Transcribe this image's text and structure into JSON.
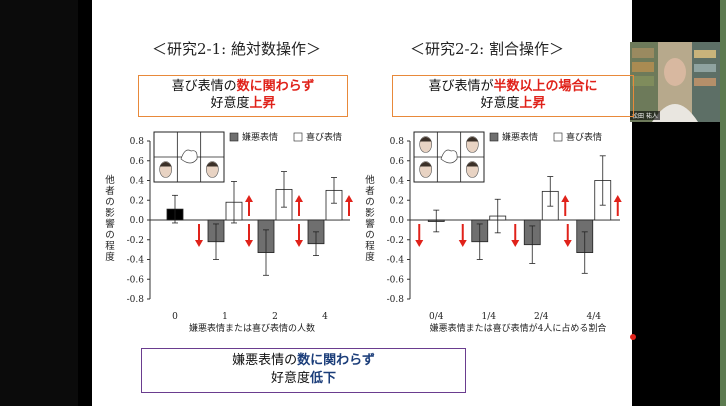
{
  "slide": {
    "left_title": "＜研究2-1: 絶対数操作＞",
    "right_title": "＜研究2-2: 割合操作＞",
    "left_box": {
      "line1_a": "喜び表情の",
      "line1_b": "数に関わらず",
      "line2_a": "好意度",
      "line2_b": "上昇"
    },
    "right_box": {
      "line1_a": "喜び表情が",
      "line1_b": "半数以上の場合に",
      "line2_a": "好意度",
      "line2_b": "上昇"
    },
    "bottom_box": {
      "line1_a": "嫌悪表情の",
      "line1_b": "数に関わらず",
      "line2_a": "好意度",
      "line2_b": "低下"
    }
  },
  "video": {
    "name": "松田 祐人"
  },
  "colors": {
    "highlight_red": "#e0221a",
    "highlight_blue": "#1c3e7a",
    "orange_border": "#e8893a",
    "purple_border": "#6a3d8f",
    "bar_black": "#000000",
    "bar_gray": "#6f6f6f"
  },
  "chart_data": [
    {
      "type": "bar",
      "categories": [
        "0",
        "1",
        "2",
        "4"
      ],
      "ylabel": "他者の影響の程度",
      "xlabel": "嫌悪表情または喜び表情の人数",
      "ylim": [
        -0.8,
        0.8
      ],
      "yticks": [
        "0.8",
        "0.6",
        "0.4",
        "0.2",
        "0.0",
        "-0.2",
        "-0.4",
        "-0.6",
        "-0.8"
      ],
      "legend": [
        "嫌悪表情",
        "喜び表情"
      ],
      "series": [
        {
          "name": "嫌悪表情",
          "values": [
            0.11,
            -0.22,
            -0.33,
            -0.24
          ],
          "errors": [
            0.14,
            0.18,
            0.23,
            0.12
          ]
        },
        {
          "name": "喜び表情",
          "values": [
            null,
            0.18,
            0.31,
            0.3
          ],
          "errors": [
            null,
            0.21,
            0.18,
            0.13
          ]
        }
      ]
    },
    {
      "type": "bar",
      "categories": [
        "0/4",
        "1/4",
        "2/4",
        "4/4"
      ],
      "ylabel": "他者の影響の程度",
      "xlabel": "嫌悪表情または喜び表情が4人に占める割合",
      "ylim": [
        -0.8,
        0.8
      ],
      "yticks": [
        "0.8",
        "0.6",
        "0.4",
        "0.2",
        "0.0",
        "-0.2",
        "-0.4",
        "-0.6",
        "-0.8"
      ],
      "legend": [
        "嫌悪表情",
        "喜び表情"
      ],
      "series": [
        {
          "name": "嫌悪表情",
          "values": [
            -0.01,
            -0.22,
            -0.25,
            -0.33
          ],
          "errors": [
            0.11,
            0.18,
            0.19,
            0.21
          ]
        },
        {
          "name": "喜び表情",
          "values": [
            null,
            0.04,
            0.29,
            0.4
          ],
          "errors": [
            null,
            0.17,
            0.15,
            0.25
          ]
        }
      ]
    }
  ]
}
